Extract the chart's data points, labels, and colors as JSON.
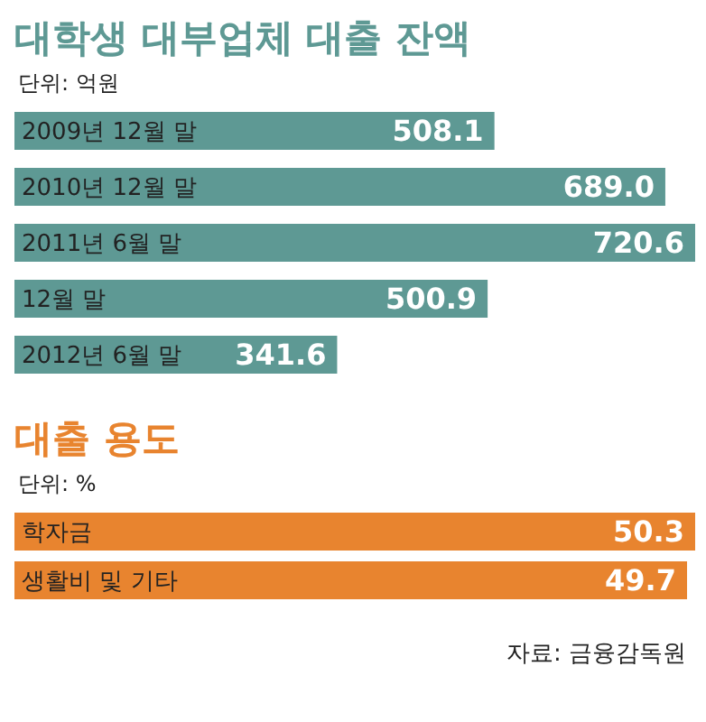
{
  "chart_data": [
    {
      "type": "bar",
      "orientation": "horizontal",
      "title": "대학생 대부업체 대출 잔액",
      "subtitle": "단위: 억원",
      "categories": [
        "2009년 12월 말",
        "2010년 12월 말",
        "2011년 6월 말",
        "12월 말",
        "2012년 6월 말"
      ],
      "values": [
        508.1,
        689.0,
        720.6,
        500.9,
        341.6
      ],
      "value_labels": [
        "508.1",
        "689.0",
        "720.6",
        "500.9",
        "341.6"
      ],
      "color": "#5e9994"
    },
    {
      "type": "bar",
      "orientation": "horizontal",
      "title": "대출 용도",
      "subtitle": "단위: %",
      "categories": [
        "학자금",
        "생활비 및 기타"
      ],
      "values": [
        50.3,
        49.7
      ],
      "color": "#e8842f",
      "data_labels": true,
      "annotations": [
        "자료: 금융감독원"
      ]
    }
  ]
}
